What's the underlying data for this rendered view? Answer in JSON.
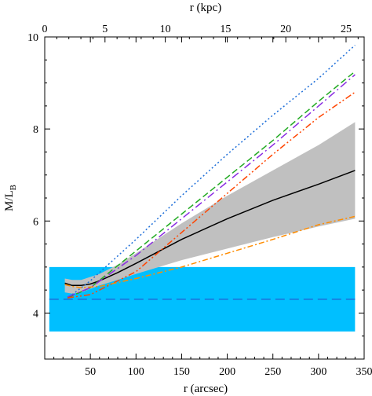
{
  "chart_data": {
    "type": "line",
    "xlabel_bottom": "r (arcsec)",
    "xlabel_top": "r (kpc)",
    "ylabel": "M/L",
    "ylabel_sub": "B",
    "xlim": [
      0,
      350
    ],
    "ylim": [
      3,
      10
    ],
    "xlim_top": [
      0,
      26.5
    ],
    "xticks_bottom": [
      50,
      100,
      150,
      200,
      250,
      300,
      350
    ],
    "xticks_top": [
      0,
      5,
      10,
      15,
      20,
      25
    ],
    "yticks": [
      4,
      6,
      8,
      10
    ],
    "grid": false,
    "bands": [
      {
        "color": "#00bfff",
        "x": [
          5,
          340
        ],
        "y": [
          3.6,
          5.0
        ]
      }
    ],
    "shaded_region": {
      "color": "#c0c0c0",
      "x": [
        22,
        30,
        40,
        60,
        80,
        100,
        150,
        200,
        250,
        300,
        340
      ],
      "upper": [
        4.75,
        4.72,
        4.72,
        4.85,
        5.05,
        5.3,
        5.95,
        6.55,
        7.1,
        7.65,
        8.15
      ],
      "lower": [
        4.45,
        4.42,
        4.45,
        4.6,
        4.72,
        4.85,
        5.15,
        5.4,
        5.65,
        5.88,
        6.05
      ]
    },
    "series": [
      {
        "color": "#000000",
        "dash": "solid",
        "x": [
          22,
          30,
          40,
          50,
          60,
          80,
          100,
          150,
          200,
          250,
          300,
          340
        ],
        "y": [
          4.65,
          4.6,
          4.6,
          4.63,
          4.7,
          4.88,
          5.08,
          5.6,
          6.05,
          6.45,
          6.8,
          7.1
        ]
      },
      {
        "color": "#1e6fd9",
        "dash": "longdash",
        "x": [
          5,
          340
        ],
        "y": [
          4.3,
          4.3
        ]
      },
      {
        "color": "#1e6fd9",
        "dash": "dotted",
        "x": [
          30,
          50,
          100,
          150,
          200,
          250,
          300,
          340
        ],
        "y": [
          4.4,
          4.7,
          5.6,
          6.55,
          7.45,
          8.3,
          9.1,
          9.82
        ]
      },
      {
        "color": "#22aa22",
        "dash": "dashed",
        "x": [
          25,
          50,
          100,
          150,
          200,
          250,
          300,
          340
        ],
        "y": [
          4.33,
          4.55,
          5.35,
          6.15,
          6.95,
          7.75,
          8.6,
          9.25
        ]
      },
      {
        "color": "#8a2be2",
        "dash": "dashdot",
        "x": [
          25,
          50,
          100,
          150,
          200,
          250,
          300,
          340
        ],
        "y": [
          4.35,
          4.55,
          5.25,
          6.05,
          6.85,
          7.65,
          8.5,
          9.18
        ]
      },
      {
        "color": "#ff4500",
        "dash": "dashdotdot",
        "x": [
          25,
          50,
          100,
          150,
          200,
          250,
          300,
          340
        ],
        "y": [
          4.33,
          4.4,
          4.9,
          5.75,
          6.6,
          7.45,
          8.25,
          8.8
        ]
      },
      {
        "color": "#ff8c00",
        "dash": "dashdot2",
        "x": [
          22,
          30,
          40,
          60,
          100,
          150,
          200,
          250,
          300,
          340
        ],
        "y": [
          4.62,
          4.58,
          4.55,
          4.58,
          4.75,
          5.0,
          5.3,
          5.6,
          5.92,
          6.1
        ]
      }
    ]
  }
}
